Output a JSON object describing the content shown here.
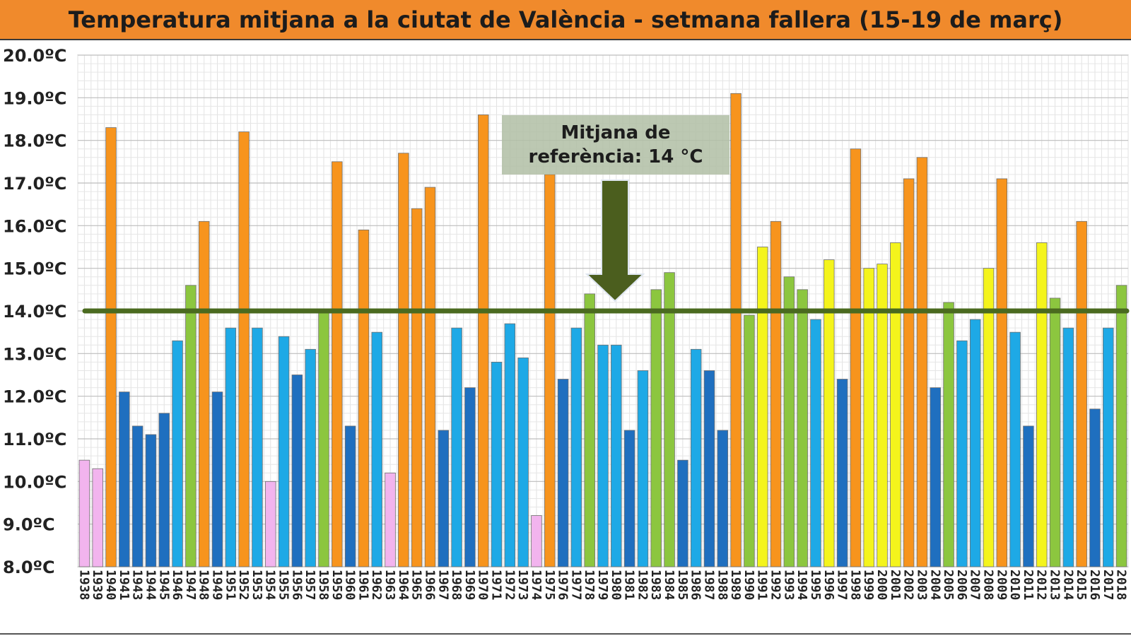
{
  "title": "Temperatura mitjana a la ciutat de València - setmana fallera (15-19 de març)",
  "annotation": {
    "line1": "Mitjana de",
    "line2": "referència: 14 °C"
  },
  "colors": {
    "pink": "#f2b4ee",
    "dark_blue": "#1f6fbf",
    "light_blue": "#1ea9e6",
    "green": "#8cc63f",
    "yellow": "#f4f41c",
    "orange": "#f7941d",
    "reference_line": "#4a6a1f",
    "arrow": "#4b5e1e",
    "title_bg": "#f08a2c"
  },
  "chart_data": {
    "type": "bar",
    "title": "Temperatura mitjana a la ciutat de València - setmana fallera (15-19 de març)",
    "ylim": [
      8.0,
      20.0
    ],
    "yticks": [
      "8.0ºC",
      "9.0ºC",
      "10.0ºC",
      "11.0ºC",
      "12.0ºC",
      "13.0ºC",
      "14.0ºC",
      "15.0ºC",
      "16.0ºC",
      "17.0ºC",
      "18.0ºC",
      "19.0ºC",
      "20.0ºC"
    ],
    "reference_value": 14.0,
    "grid": true,
    "categories": [
      "1938",
      "1939",
      "1940",
      "1941",
      "1943",
      "1944",
      "1945",
      "1946",
      "1947",
      "1948",
      "1949",
      "1951",
      "1952",
      "1953",
      "1954",
      "1955",
      "1956",
      "1957",
      "1958",
      "1959",
      "1960",
      "1961",
      "1962",
      "1963",
      "1964",
      "1965",
      "1966",
      "1967",
      "1968",
      "1969",
      "1970",
      "1971",
      "1972",
      "1973",
      "1974",
      "1975",
      "1976",
      "1977",
      "1978",
      "1979",
      "1980",
      "1981",
      "1982",
      "1983",
      "1984",
      "1985",
      "1986",
      "1987",
      "1988",
      "1989",
      "1990",
      "1991",
      "1992",
      "1993",
      "1994",
      "1995",
      "1996",
      "1997",
      "1998",
      "1999",
      "2000",
      "2001",
      "2002",
      "2003",
      "2004",
      "2005",
      "2006",
      "2007",
      "2008",
      "2009",
      "2010",
      "2011",
      "2012",
      "2013",
      "2014",
      "2015",
      "2016",
      "2017",
      "2018"
    ],
    "values": [
      10.5,
      10.3,
      18.3,
      12.1,
      11.3,
      11.1,
      11.6,
      13.3,
      14.6,
      16.1,
      12.1,
      13.6,
      18.2,
      13.6,
      10.0,
      13.4,
      12.5,
      13.1,
      14.0,
      17.5,
      11.3,
      15.9,
      13.5,
      10.2,
      17.7,
      16.4,
      16.9,
      11.2,
      13.6,
      12.2,
      18.6,
      12.8,
      13.7,
      12.9,
      9.2,
      17.2,
      12.4,
      13.6,
      14.4,
      13.2,
      13.2,
      11.2,
      12.6,
      14.5,
      14.9,
      10.5,
      13.1,
      12.6,
      11.2,
      19.1,
      13.9,
      15.5,
      16.1,
      14.8,
      14.5,
      13.8,
      15.2,
      12.4,
      17.8,
      15.0,
      15.1,
      15.6,
      17.1,
      17.6,
      12.2,
      14.2,
      13.3,
      13.8,
      15.0,
      17.1,
      13.5,
      11.3,
      15.6,
      14.3,
      13.6,
      16.1,
      11.7,
      13.6,
      14.6
    ],
    "bar_colors": [
      "pink",
      "pink",
      "orange",
      "dark_blue",
      "dark_blue",
      "dark_blue",
      "dark_blue",
      "light_blue",
      "green",
      "orange",
      "dark_blue",
      "light_blue",
      "orange",
      "light_blue",
      "pink",
      "light_blue",
      "dark_blue",
      "light_blue",
      "green",
      "orange",
      "dark_blue",
      "orange",
      "light_blue",
      "pink",
      "orange",
      "orange",
      "orange",
      "dark_blue",
      "light_blue",
      "dark_blue",
      "orange",
      "light_blue",
      "light_blue",
      "light_blue",
      "pink",
      "orange",
      "dark_blue",
      "light_blue",
      "green",
      "light_blue",
      "light_blue",
      "dark_blue",
      "light_blue",
      "green",
      "green",
      "dark_blue",
      "light_blue",
      "dark_blue",
      "dark_blue",
      "orange",
      "green",
      "yellow",
      "orange",
      "green",
      "green",
      "light_blue",
      "yellow",
      "dark_blue",
      "orange",
      "yellow",
      "yellow",
      "yellow",
      "orange",
      "orange",
      "dark_blue",
      "green",
      "light_blue",
      "light_blue",
      "yellow",
      "orange",
      "light_blue",
      "dark_blue",
      "yellow",
      "green",
      "light_blue",
      "orange",
      "dark_blue",
      "light_blue",
      "green"
    ]
  }
}
